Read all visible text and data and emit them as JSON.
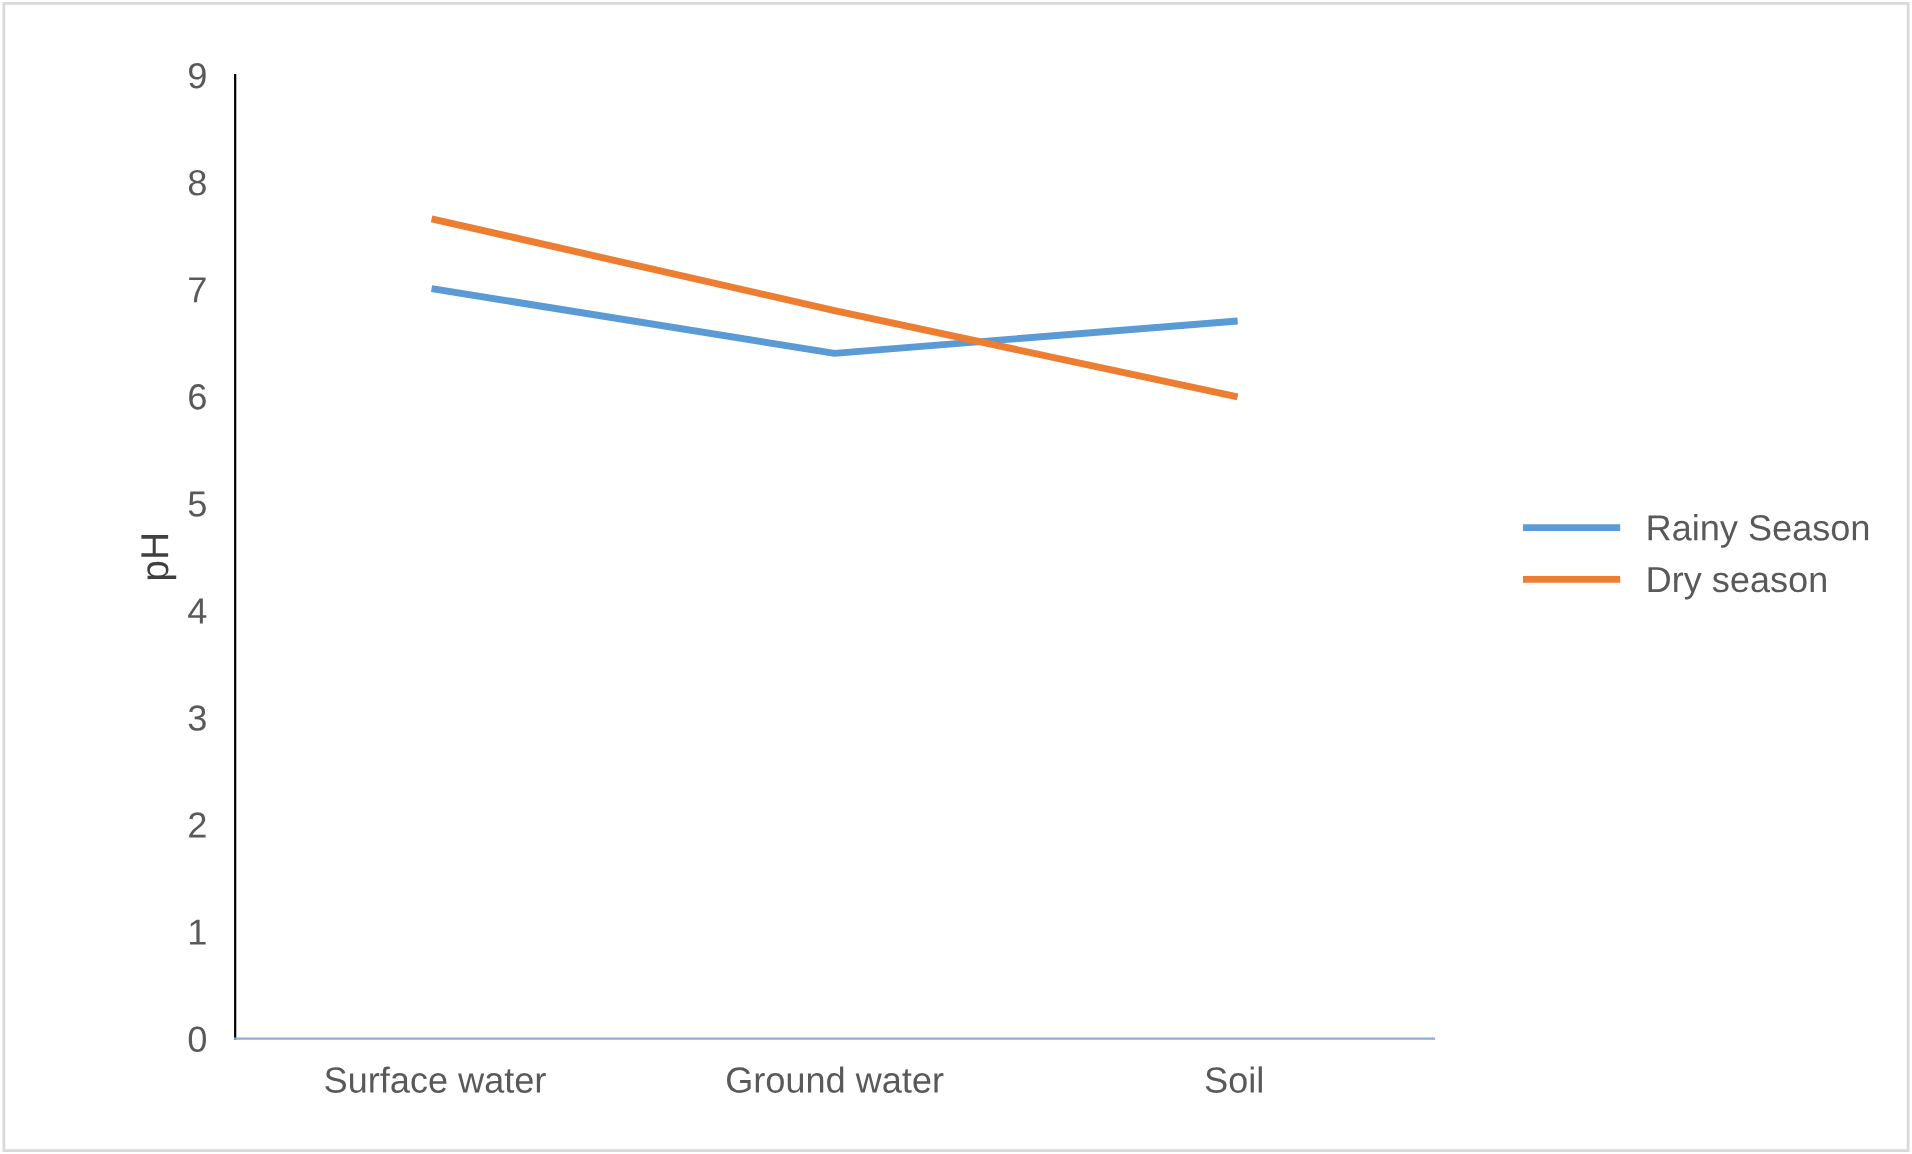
{
  "chart_data": {
    "type": "line",
    "ylabel": "pH",
    "categories": [
      "Surface water",
      "Ground water",
      "Soil"
    ],
    "series": [
      {
        "name": "Rainy Season",
        "color": "#5b9bd5",
        "values": [
          7.0,
          6.4,
          6.7
        ]
      },
      {
        "name": "Dry season",
        "color": "#ed7d31",
        "values": [
          7.65,
          6.8,
          6.0
        ]
      }
    ],
    "ylim": [
      0,
      9
    ],
    "yticks": [
      0,
      1,
      2,
      3,
      4,
      5,
      6,
      7,
      8,
      9
    ],
    "grid": false,
    "legend": "right",
    "marker": "none",
    "line_style": "solid"
  }
}
